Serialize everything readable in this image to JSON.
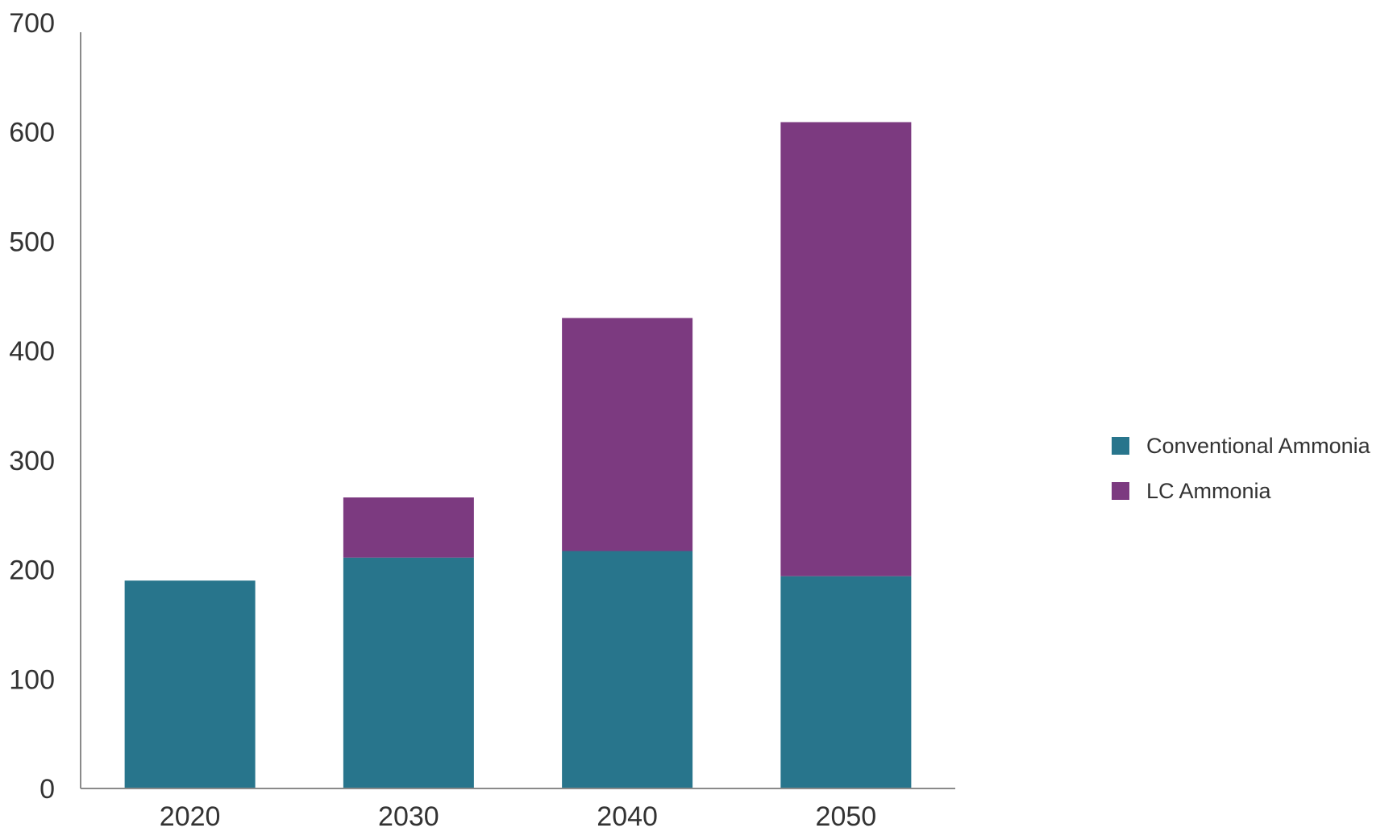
{
  "chart_data": {
    "type": "bar",
    "stacked": true,
    "categories": [
      "2020",
      "2030",
      "2040",
      "2050"
    ],
    "series": [
      {
        "name": "Conventional Ammonia",
        "color": "#28758c",
        "values": [
          190,
          211,
          217,
          194
        ]
      },
      {
        "name": "LC Ammonia",
        "color": "#7c3a80",
        "values": [
          0,
          55,
          213,
          415
        ]
      }
    ],
    "y_ticks": [
      "0",
      "100",
      "200",
      "300",
      "400",
      "500",
      "600",
      "700"
    ],
    "ylim": [
      0,
      700
    ],
    "title": "",
    "xlabel": "",
    "ylabel": "",
    "grid": false,
    "legend_position": "right"
  }
}
